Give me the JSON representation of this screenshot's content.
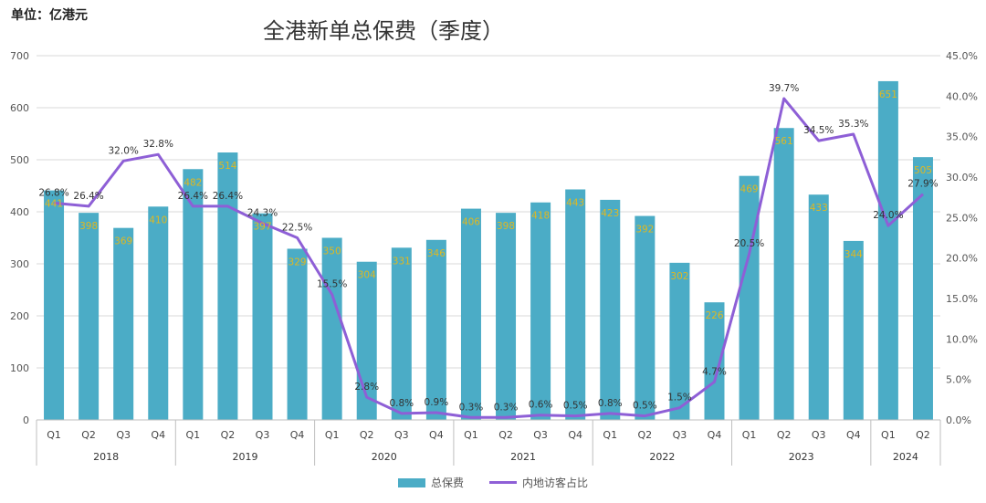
{
  "unit_label": "单位：亿港元",
  "chart_data": {
    "type": "bar",
    "title": "全港新单总保费（季度）",
    "categories": [
      "Q1",
      "Q2",
      "Q3",
      "Q4",
      "Q1",
      "Q2",
      "Q3",
      "Q4",
      "Q1",
      "Q2",
      "Q3",
      "Q4",
      "Q1",
      "Q2",
      "Q3",
      "Q4",
      "Q1",
      "Q2",
      "Q3",
      "Q4",
      "Q1",
      "Q2",
      "Q3",
      "Q4",
      "Q1",
      "Q2"
    ],
    "groups": [
      {
        "label": "2018",
        "count": 4
      },
      {
        "label": "2019",
        "count": 4
      },
      {
        "label": "2020",
        "count": 4
      },
      {
        "label": "2021",
        "count": 4
      },
      {
        "label": "2022",
        "count": 4
      },
      {
        "label": "2023",
        "count": 4
      },
      {
        "label": "2024",
        "count": 2
      }
    ],
    "series": [
      {
        "name": "总保费",
        "type": "bar",
        "axis": "left",
        "color": "#4BACC6",
        "values": [
          441,
          398,
          369,
          410,
          482,
          514,
          397,
          329,
          350,
          304,
          331,
          346,
          406,
          398,
          418,
          443,
          423,
          392,
          302,
          226,
          469,
          561,
          433,
          344,
          651,
          505
        ],
        "labels": [
          "441",
          "398",
          "369",
          "410",
          "482",
          "514",
          "397",
          "329",
          "350",
          "304",
          "331",
          "346",
          "406",
          "398",
          "418",
          "443",
          "423",
          "392",
          "302",
          "226",
          "469",
          "561",
          "433",
          "344",
          "651",
          "505"
        ]
      },
      {
        "name": "内地访客占比",
        "type": "line",
        "axis": "right",
        "color": "#8E5FD6",
        "values": [
          26.8,
          26.4,
          32.0,
          32.8,
          26.4,
          26.4,
          24.3,
          22.5,
          15.5,
          2.8,
          0.8,
          0.9,
          0.3,
          0.3,
          0.6,
          0.5,
          0.8,
          0.5,
          1.5,
          4.7,
          20.5,
          39.7,
          34.5,
          35.3,
          24.0,
          27.9
        ],
        "labels": [
          "26.8%",
          "26.4%",
          "32.0%",
          "32.8%",
          "26.4%",
          "26.4%",
          "24.3%",
          "22.5%",
          "15.5%",
          "2.8%",
          "0.8%",
          "0.9%",
          "0.3%",
          "0.3%",
          "0.6%",
          "0.5%",
          "0.8%",
          "0.5%",
          "1.5%",
          "4.7%",
          "20.5%",
          "39.7%",
          "34.5%",
          "35.3%",
          "24.0%",
          "27.9%"
        ]
      }
    ],
    "y_left": {
      "min": 0,
      "max": 700,
      "ticks": [
        "0",
        "100",
        "200",
        "300",
        "400",
        "500",
        "600",
        "700"
      ]
    },
    "y_right": {
      "min": 0,
      "max": 45,
      "ticks": [
        "0.0%",
        "5.0%",
        "10.0%",
        "15.0%",
        "20.0%",
        "25.0%",
        "30.0%",
        "35.0%",
        "40.0%",
        "45.0%"
      ]
    },
    "grid": true,
    "legend_position": "bottom"
  }
}
